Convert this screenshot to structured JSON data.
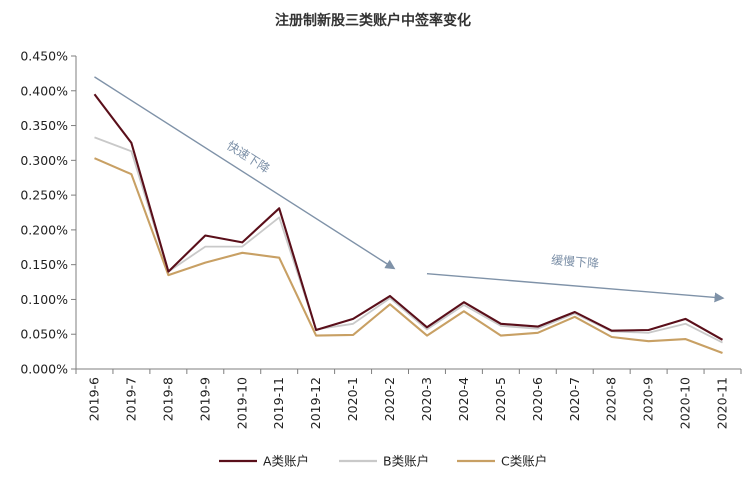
{
  "chart_data": {
    "type": "line",
    "title": "注册制新股三类账户中签率变化",
    "categories": [
      "2019-6",
      "2019-7",
      "2019-8",
      "2019-9",
      "2019-10",
      "2019-11",
      "2019-12",
      "2020-1",
      "2020-2",
      "2020-3",
      "2020-4",
      "2020-5",
      "2020-6",
      "2020-7",
      "2020-8",
      "2020-9",
      "2020-10",
      "2020-11"
    ],
    "ylim": [
      0,
      0.45
    ],
    "yticks": [
      "0.000%",
      "0.050%",
      "0.100%",
      "0.150%",
      "0.200%",
      "0.250%",
      "0.300%",
      "0.350%",
      "0.400%",
      "0.450%"
    ],
    "series": [
      {
        "name": "A类账户",
        "color": "#5a0f1a",
        "values": [
          0.395,
          0.325,
          0.14,
          0.192,
          0.182,
          0.231,
          0.056,
          0.072,
          0.105,
          0.06,
          0.096,
          0.065,
          0.061,
          0.082,
          0.055,
          0.056,
          0.072,
          0.042
        ]
      },
      {
        "name": "B类账户",
        "color": "#c9c9c9",
        "values": [
          0.333,
          0.313,
          0.14,
          0.176,
          0.176,
          0.218,
          0.057,
          0.065,
          0.102,
          0.057,
          0.092,
          0.062,
          0.058,
          0.08,
          0.054,
          0.052,
          0.065,
          0.038
        ]
      },
      {
        "name": "C类账户",
        "color": "#c8a064",
        "values": [
          0.303,
          0.28,
          0.135,
          0.153,
          0.167,
          0.16,
          0.048,
          0.049,
          0.093,
          0.048,
          0.083,
          0.048,
          0.052,
          0.075,
          0.046,
          0.04,
          0.043,
          0.023
        ]
      }
    ],
    "annotations": [
      {
        "text": "快速下降",
        "from_index": 0,
        "from_value": 0.42,
        "to_index": 8.1,
        "to_value": 0.145
      },
      {
        "text": "缓慢下降",
        "from_index": 9.0,
        "from_value": 0.137,
        "to_index": 17.0,
        "to_value": 0.102
      }
    ],
    "legend_position": "bottom"
  }
}
